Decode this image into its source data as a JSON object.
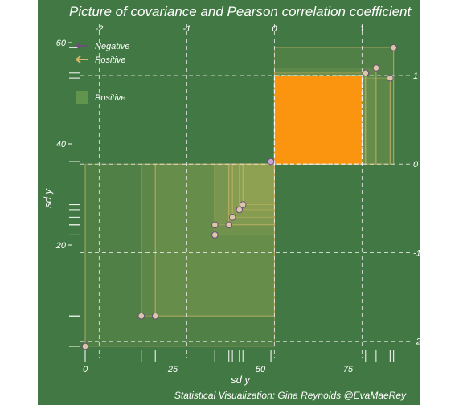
{
  "chart_data": {
    "type": "scatter",
    "title": "Picture of covariance and Pearson correlation coefficient",
    "xlabel": "sd y",
    "ylabel": "sd y",
    "caption": "Statistical Visualization: Gina Reynolds @EvaMaeRey",
    "x_ticks": [
      0,
      25,
      50,
      75
    ],
    "y_ticks": [
      20,
      40,
      60
    ],
    "xlim": [
      -1,
      93
    ],
    "ylim": [
      -1,
      68
    ],
    "top_axis": {
      "ticks": [
        -2,
        -1,
        0,
        1
      ],
      "labels": [
        "-2",
        "-1",
        "0",
        "1"
      ]
    },
    "right_axis": {
      "ticks": [
        -2,
        -1,
        0,
        1
      ],
      "labels": [
        "-2",
        "-1",
        "0",
        "1"
      ]
    },
    "mean": {
      "x": 54,
      "y": 36
    },
    "sd": {
      "x": 25,
      "y": 17.5
    },
    "legend": [
      {
        "label": "Negative",
        "kind": "arrow",
        "color": "#6a4f77"
      },
      {
        "label": "Positive",
        "kind": "arrow",
        "color": "#d4b86a"
      },
      {
        "label": "Positive",
        "kind": "fill",
        "color": "#77a653"
      }
    ],
    "points": [
      {
        "x": 0,
        "y": 0
      },
      {
        "x": 16,
        "y": 6
      },
      {
        "x": 20,
        "y": 6
      },
      {
        "x": 37,
        "y": 22
      },
      {
        "x": 37,
        "y": 24
      },
      {
        "x": 41,
        "y": 24
      },
      {
        "x": 42,
        "y": 25.5
      },
      {
        "x": 44,
        "y": 27
      },
      {
        "x": 45,
        "y": 28
      },
      {
        "x": 53,
        "y": 36.5
      },
      {
        "x": 80,
        "y": 54
      },
      {
        "x": 83,
        "y": 55
      },
      {
        "x": 87,
        "y": 53
      },
      {
        "x": 88,
        "y": 59
      }
    ],
    "standardized_square": {
      "x0": 0,
      "x1": 1,
      "y0": 0,
      "y1": 1,
      "color": "#fb9510"
    },
    "colors": {
      "panel": "#427843",
      "negative": "#6a4f77",
      "positive": "#d4b86a",
      "fill": "#a9ae5a",
      "mean_line": "#e8e8e8"
    }
  }
}
